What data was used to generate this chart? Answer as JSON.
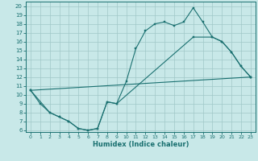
{
  "xlabel": "Humidex (Indice chaleur)",
  "xlim": [
    -0.5,
    23.5
  ],
  "ylim": [
    5.8,
    20.5
  ],
  "xticks": [
    0,
    1,
    2,
    3,
    4,
    5,
    6,
    7,
    8,
    9,
    10,
    11,
    12,
    13,
    14,
    15,
    16,
    17,
    18,
    19,
    20,
    21,
    22,
    23
  ],
  "yticks": [
    6,
    7,
    8,
    9,
    10,
    11,
    12,
    13,
    14,
    15,
    16,
    17,
    18,
    19,
    20
  ],
  "bg_color": "#c8e8e8",
  "grid_color": "#a0c8c8",
  "line_color": "#1a7070",
  "line1_x": [
    0,
    1,
    2,
    3,
    4,
    5,
    6,
    7,
    8,
    9,
    10,
    11,
    12,
    13,
    14,
    15,
    16,
    17,
    18,
    19,
    20,
    21,
    22,
    23
  ],
  "line1_y": [
    10.5,
    9.0,
    8.0,
    7.5,
    7.0,
    6.2,
    6.0,
    6.2,
    9.2,
    9.0,
    11.5,
    15.2,
    17.2,
    18.0,
    18.2,
    17.8,
    18.2,
    19.8,
    18.2,
    16.5,
    16.0,
    14.8,
    13.2,
    12.0
  ],
  "line2_x": [
    0,
    2,
    3,
    4,
    5,
    6,
    7,
    8,
    9,
    17,
    19,
    20,
    21,
    22,
    23
  ],
  "line2_y": [
    10.5,
    8.0,
    7.5,
    7.0,
    6.2,
    6.0,
    6.2,
    9.2,
    9.0,
    16.5,
    16.5,
    16.0,
    14.8,
    13.2,
    12.0
  ],
  "line3_x": [
    0,
    23
  ],
  "line3_y": [
    10.5,
    12.0
  ]
}
